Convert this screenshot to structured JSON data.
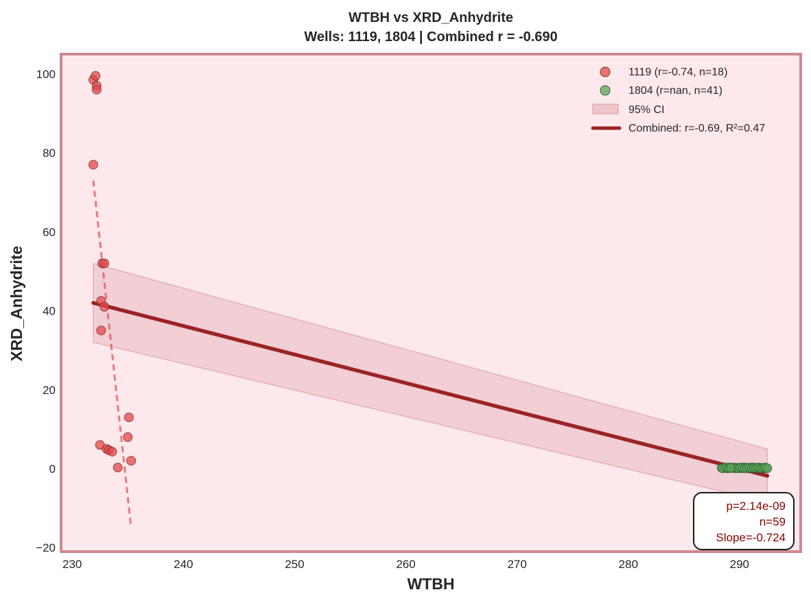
{
  "chart_data": {
    "type": "scatter",
    "title": "WTBH vs XRD_Anhydrite",
    "subtitle": "Wells: 1119, 1804 | Combined r = -0.690",
    "xlabel": "WTBH",
    "ylabel": "XRD_Anhydrite",
    "xlim": [
      229,
      295.5
    ],
    "ylim": [
      -21,
      105
    ],
    "xticks": [
      230,
      240,
      250,
      260,
      270,
      280,
      290
    ],
    "yticks": [
      -20,
      0,
      20,
      40,
      60,
      80,
      100
    ],
    "grid": false,
    "legend_position": "top-right",
    "series": [
      {
        "name": "1119 (r=-0.74, n=18)",
        "color": "#e24a4a",
        "points": [
          [
            231.9,
            98.5
          ],
          [
            232.1,
            99.5
          ],
          [
            232.2,
            97.0
          ],
          [
            232.2,
            96.0
          ],
          [
            231.9,
            77.0
          ],
          [
            232.7,
            52.0
          ],
          [
            232.9,
            52.0
          ],
          [
            232.6,
            42.5
          ],
          [
            232.9,
            41.0
          ],
          [
            232.6,
            35.0
          ],
          [
            235.1,
            13.0
          ],
          [
            235.0,
            8.0
          ],
          [
            232.5,
            6.0
          ],
          [
            233.1,
            5.0
          ],
          [
            233.3,
            4.7
          ],
          [
            233.6,
            4.3
          ],
          [
            235.3,
            2.0
          ],
          [
            234.1,
            0.3
          ]
        ]
      },
      {
        "name": "1804 (r=nan, n=41)",
        "color": "#5aa65a",
        "points": [
          [
            288.4,
            0.2
          ],
          [
            288.7,
            0.2
          ],
          [
            288.9,
            0.1
          ],
          [
            289.1,
            0.3
          ],
          [
            289.4,
            0.2
          ],
          [
            289.6,
            0.1
          ],
          [
            289.8,
            0.2
          ],
          [
            290.0,
            0.2
          ],
          [
            290.2,
            0.1
          ],
          [
            290.4,
            0.3
          ],
          [
            290.6,
            0.2
          ],
          [
            290.8,
            0.1
          ],
          [
            291.0,
            0.2
          ],
          [
            291.2,
            0.3
          ],
          [
            291.4,
            0.2
          ],
          [
            291.6,
            0.1
          ],
          [
            291.8,
            0.2
          ],
          [
            292.0,
            0.2
          ],
          [
            292.2,
            0.1
          ],
          [
            292.4,
            0.2
          ],
          [
            288.5,
            0.1
          ],
          [
            288.8,
            0.3
          ],
          [
            289.0,
            0.1
          ],
          [
            289.3,
            0.2
          ],
          [
            289.5,
            0.3
          ],
          [
            289.7,
            0.2
          ],
          [
            289.9,
            0.1
          ],
          [
            290.1,
            0.3
          ],
          [
            290.3,
            0.2
          ],
          [
            290.5,
            0.1
          ],
          [
            290.7,
            0.2
          ],
          [
            290.9,
            0.3
          ],
          [
            291.1,
            0.1
          ],
          [
            291.3,
            0.2
          ],
          [
            291.5,
            0.2
          ],
          [
            291.7,
            0.3
          ],
          [
            291.9,
            0.1
          ],
          [
            292.1,
            0.2
          ],
          [
            292.3,
            0.3
          ],
          [
            292.5,
            0.1
          ],
          [
            289.2,
            0.2
          ]
        ]
      }
    ],
    "well_fit_1119": {
      "color": "#e24a4a",
      "x": [
        231.9,
        235.3
      ],
      "y": [
        73.0,
        -15.0
      ]
    },
    "combined_fit": {
      "name": "Combined: r=-0.69, R²=0.47",
      "color": "#9b2424",
      "x": [
        231.9,
        292.5
      ],
      "y": [
        42.0,
        -1.8
      ]
    },
    "confidence_band": {
      "name": "95% CI",
      "x": [
        231.9,
        292.5
      ],
      "upper": [
        52.0,
        5.0
      ],
      "lower": [
        32.0,
        -8.5
      ]
    },
    "stats": {
      "lines": [
        "p=2.14e-09",
        "n=59",
        "Slope=-0.724"
      ],
      "color": "#8b0000"
    }
  }
}
